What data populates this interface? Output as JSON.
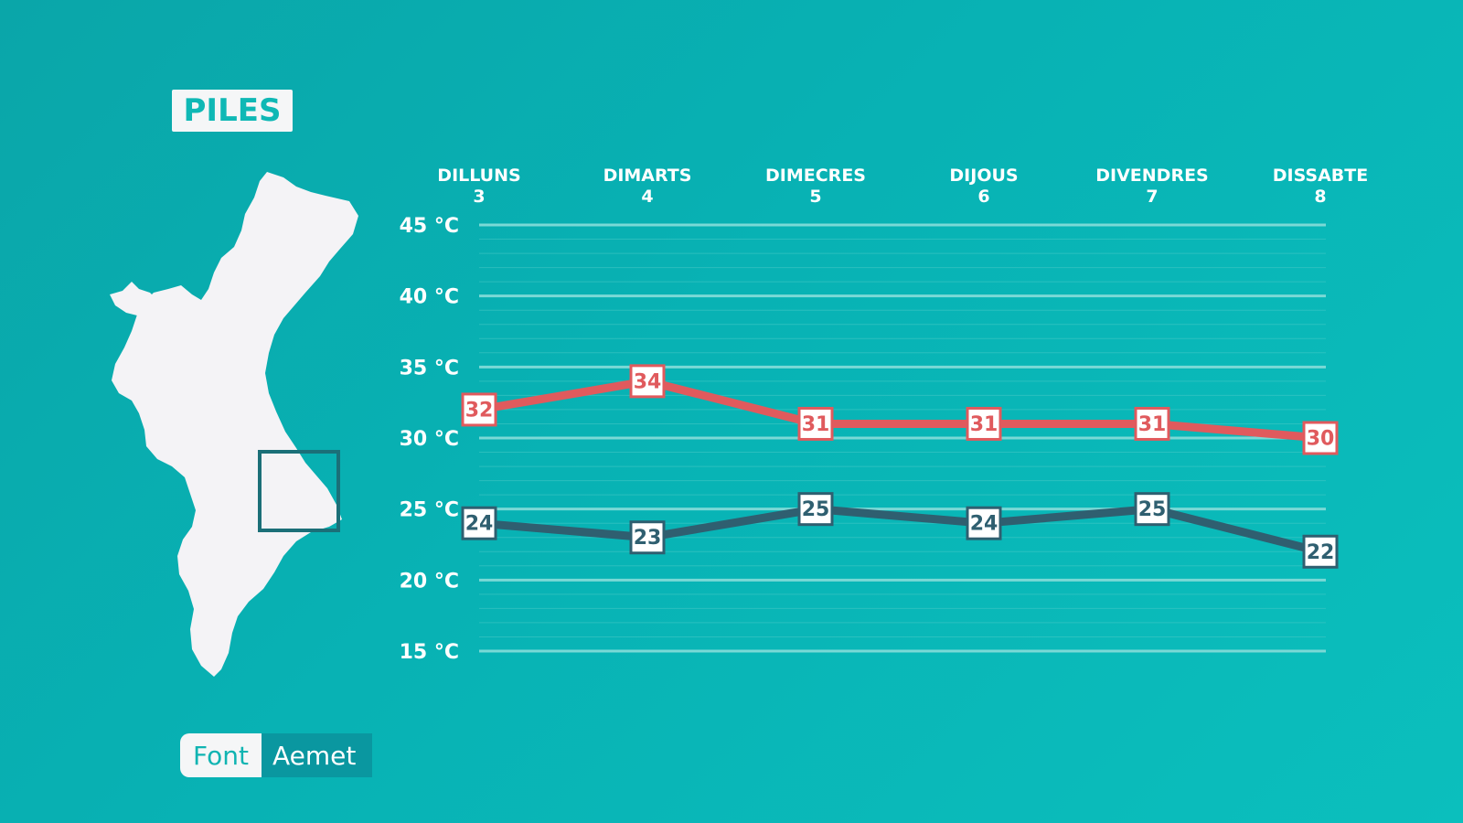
{
  "location_title": "PILES",
  "source": {
    "label": "Font",
    "value": "Aemet"
  },
  "colors": {
    "background": "#0aa9ab",
    "max_line": "#e05a5d",
    "min_line": "#2f5f70",
    "grid": "#7ad9d6",
    "text": "#ffffff"
  },
  "chart_data": {
    "type": "line",
    "categories": [
      {
        "day": "DILLUNS",
        "date": "3"
      },
      {
        "day": "DIMARTS",
        "date": "4"
      },
      {
        "day": "DIMECRES",
        "date": "5"
      },
      {
        "day": "DIJOUS",
        "date": "6"
      },
      {
        "day": "DIVENDRES",
        "date": "7"
      },
      {
        "day": "DISSABTE",
        "date": "8"
      }
    ],
    "y_ticks": [
      "45 °C",
      "40 °C",
      "35 °C",
      "30 °C",
      "25 °C",
      "20 °C",
      "15 °C"
    ],
    "ylim": [
      15,
      45
    ],
    "y_tick_values": [
      45,
      40,
      35,
      30,
      25,
      20,
      15
    ],
    "series": [
      {
        "values": [
          32,
          34,
          31,
          31,
          31,
          30
        ],
        "color": "#e05a5d"
      },
      {
        "values": [
          24,
          23,
          25,
          24,
          25,
          22
        ],
        "color": "#2f5f70"
      }
    ],
    "grid": true
  }
}
